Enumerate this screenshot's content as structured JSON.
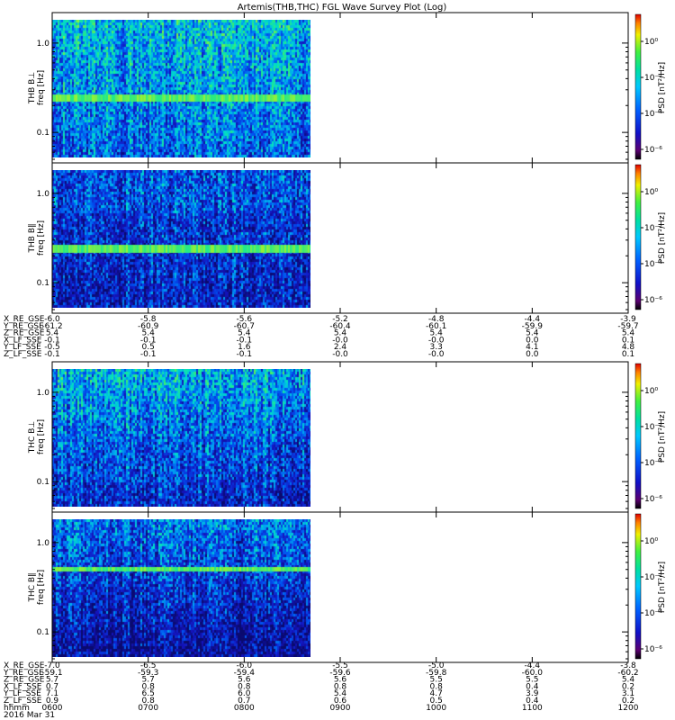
{
  "title": "Artemis(THB,THC) FGL Wave Survey Plot (Log)",
  "colorbar_label": "PSD [nT²/Hz]",
  "colorbar_ticks": [
    "10⁰",
    "10⁻²",
    "10⁻⁴",
    "10⁻⁶"
  ],
  "freq_ticks": [
    "1.0",
    "0.1"
  ],
  "xticks": [
    "0600",
    "0700",
    "0800",
    "0900",
    "1000",
    "1100",
    "1200"
  ],
  "date_label": "2016 Mar 31",
  "colors": {
    "low": "#0a0a90",
    "mid": "#00c8e8",
    "high": "#30e880"
  },
  "chart_data": {
    "type": "heatmap",
    "panels": [
      {
        "probe": "THB",
        "component": "B⊥",
        "ylabel": "THB B⊥",
        "ylabel2": "freq [Hz]",
        "data_coverage_end": "~0845",
        "bright_band_hz": 0.27
      },
      {
        "probe": "THB",
        "component": "B∥",
        "ylabel": "THB B∥",
        "ylabel2": "freq [Hz]",
        "data_coverage_end": "~0845",
        "bright_band_hz": 0.27
      },
      {
        "probe": "THC",
        "component": "B⊥",
        "ylabel": "THC B⊥",
        "ylabel2": "freq [Hz]",
        "data_coverage_end": "~0845"
      },
      {
        "probe": "THC",
        "component": "B∥",
        "ylabel": "THC B∥",
        "ylabel2": "freq [Hz]",
        "data_coverage_end": "~0845",
        "bright_band_hz": 0.5
      }
    ],
    "ephemeris": [
      {
        "labels": [
          "X_RE_GSE",
          "Y_RE_GSE",
          "Z_RE_GSE",
          "X_LF_SSE",
          "Y_LF_SSE",
          "Z_LF_SSE"
        ],
        "values": [
          [
            "-6.0",
            "-5.8",
            "-5.6",
            "-5.2",
            "-4.8",
            "-4.4",
            "-3.9"
          ],
          [
            "-61.2",
            "-60.9",
            "-60.7",
            "-60.4",
            "-60.1",
            "-59.9",
            "-59.7"
          ],
          [
            "5.4",
            "5.4",
            "5.4",
            "5.4",
            "5.4",
            "5.4",
            "5.4"
          ],
          [
            "-0.1",
            "-0.1",
            "-0.1",
            "-0.0",
            "-0.0",
            "0.0",
            "0.1"
          ],
          [
            "-0.5",
            "0.5",
            "1.6",
            "2.4",
            "3.3",
            "4.1",
            "4.8"
          ],
          [
            "-0.1",
            "-0.1",
            "-0.1",
            "-0.0",
            "-0.0",
            "0.0",
            "0.1"
          ]
        ]
      },
      {
        "labels": [
          "X_RE_GSE",
          "Y_RE_GSE",
          "Z_RE_GSE",
          "X_LF_SSE",
          "Y_LF_SSE",
          "Z_LF_SSE",
          "hhmm"
        ],
        "values": [
          [
            "-7.0",
            "-6.5",
            "-6.0",
            "-5.5",
            "-5.0",
            "-4.4",
            "-3.8"
          ],
          [
            "-59.1",
            "-59.3",
            "-59.4",
            "-59.6",
            "-59.8",
            "-60.0",
            "-60.2"
          ],
          [
            "5.7",
            "5.7",
            "5.6",
            "5.6",
            "5.5",
            "5.5",
            "5.4"
          ],
          [
            "0.7",
            "0.8",
            "0.8",
            "0.8",
            "0.8",
            "0.4",
            "0.2"
          ],
          [
            "7.1",
            "6.5",
            "6.0",
            "5.4",
            "4.7",
            "3.9",
            "3.1"
          ],
          [
            "0.9",
            "0.8",
            "0.7",
            "0.6",
            "0.5",
            "0.4",
            "0.2"
          ],
          [
            "0600",
            "0700",
            "0800",
            "0900",
            "1000",
            "1100",
            "1200"
          ]
        ]
      }
    ]
  }
}
